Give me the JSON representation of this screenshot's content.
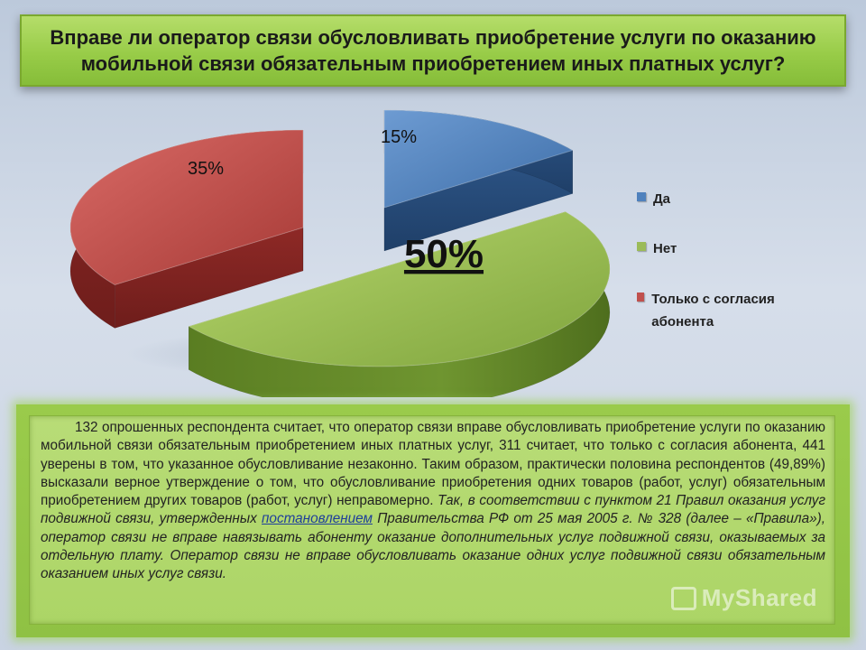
{
  "title": "Вправе ли оператор связи обусловливать приобретение услуги по оказанию мобильной связи обязательным приобретением иных платных услуг?",
  "chart_data": {
    "type": "pie",
    "title": "Вправе ли оператор связи обусловливать приобретение услуги по оказанию мобильной связи обязательным приобретением иных платных услуг?",
    "categories": [
      "Да",
      "Нет",
      "Только с согласия абонента"
    ],
    "values": [
      15,
      50,
      35
    ],
    "data_labels": [
      "15%",
      "50%",
      "35%"
    ],
    "colors": [
      "#4f81bd",
      "#9bbb59",
      "#c0504d"
    ],
    "exploded": true,
    "three_d": true,
    "legend_position": "right"
  },
  "legend": [
    {
      "label": "Да",
      "color": "#4f81bd"
    },
    {
      "label": "Нет",
      "color": "#9bbb59"
    },
    {
      "label": "Только с согласия абонента",
      "color": "#c0504d"
    }
  ],
  "text": {
    "p1": "132 опрошенных респондента считает, что оператор связи вправе обусловливать приобретение услуги по оказанию мобильной связи обязательным приобретением иных платных услуг, 311 считает, что только с согласия абонента, 441 уверены в том, что указанное обусловливание незаконно. Таким образом, практически половина респондентов (49,89%) высказали верное утверждение о том, что обусловливание приобретения одних товаров (работ, услуг) обязательным приобретением других товаров (работ, услуг) неправомерно.",
    "p2": "Так, в соответствии с пунктом 21 Правил оказания услуг подвижной связи, утвержденных",
    "link": "постановлением",
    "p3": "Правительства РФ от 25 мая 2005 г. № 328 (далее – «Правила»), оператор связи не вправе навязывать абоненту оказание дополнительных услуг подвижной связи, оказываемых за отдельную плату. Оператор связи не вправе обусловливать оказание одних услуг подвижной связи обязательным оказанием иных услуг связи."
  },
  "watermark": "MyShared"
}
